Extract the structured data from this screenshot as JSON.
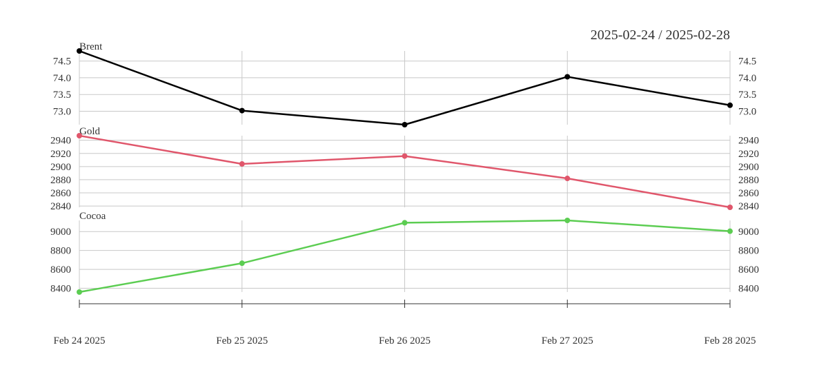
{
  "range_label": "2025-02-24 / 2025-02-28",
  "chart_data": {
    "type": "line",
    "x": [
      "Feb 24 2025",
      "Feb 25 2025",
      "Feb 26 2025",
      "Feb 27 2025",
      "Feb 28 2025"
    ],
    "x_tick_labels": [
      "Feb 24 2025",
      "Feb 25 2025",
      "Feb 26 2025",
      "Feb 27 2025",
      "Feb 28 2025"
    ],
    "grid": true,
    "panels": [
      {
        "name": "Brent",
        "color": "#000000",
        "values": [
          74.8,
          73.02,
          72.6,
          74.03,
          73.18
        ],
        "ylim": [
          72.6,
          74.8
        ],
        "y_ticks": [
          73.0,
          73.5,
          74.0,
          74.5
        ],
        "y_tick_labels": [
          "73.0",
          "73.5",
          "74.0",
          "74.5"
        ]
      },
      {
        "name": "Gold",
        "color": "#e0566b",
        "values": [
          2947,
          2904,
          2916,
          2882,
          2838
        ],
        "ylim": [
          2838,
          2947
        ],
        "y_ticks": [
          2840,
          2860,
          2880,
          2900,
          2920,
          2940
        ],
        "y_tick_labels": [
          "2840",
          "2860",
          "2880",
          "2900",
          "2920",
          "2940"
        ]
      },
      {
        "name": "Cocoa",
        "color": "#5ccd52",
        "values": [
          8360,
          8665,
          9093,
          9118,
          9004
        ],
        "ylim": [
          8360,
          9118
        ],
        "y_ticks": [
          8400,
          8600,
          8800,
          9000
        ],
        "y_tick_labels": [
          "8400",
          "8600",
          "8800",
          "9000"
        ]
      }
    ]
  }
}
